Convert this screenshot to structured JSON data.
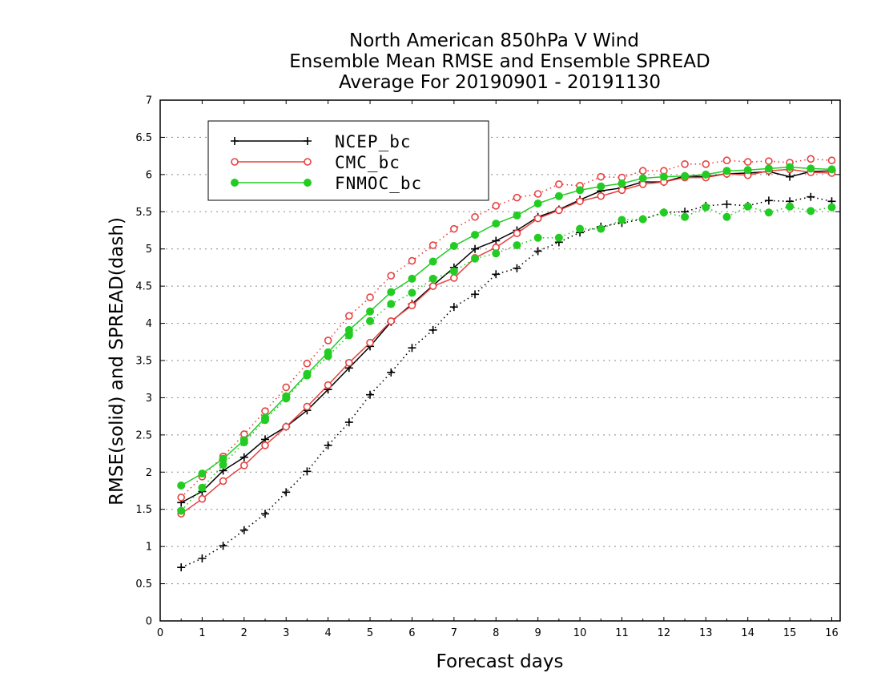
{
  "chart_data": {
    "type": "line",
    "title": [
      "North American 850hPa V Wind",
      "Ensemble Mean RMSE and Ensemble SPREAD",
      "Average For 20190901 - 20191130"
    ],
    "xlabel": "Forecast days",
    "ylabel": "RMSE(solid) and SPREAD(dash)",
    "xlim": [
      0,
      16.2
    ],
    "ylim": [
      0,
      7
    ],
    "xticks": [
      "0",
      "1",
      "2",
      "3",
      "4",
      "5",
      "6",
      "7",
      "8",
      "9",
      "10",
      "11",
      "12",
      "13",
      "14",
      "15",
      "16"
    ],
    "yticks": [
      "0",
      "0.5",
      "1",
      "1.5",
      "2",
      "2.5",
      "3",
      "3.5",
      "4",
      "4.5",
      "5",
      "5.5",
      "6",
      "6.5",
      "7"
    ],
    "grid": "dotted horizontal",
    "legend_position": "top-left",
    "x": [
      0.5,
      1,
      1.5,
      2,
      2.5,
      3,
      3.5,
      4,
      4.5,
      5,
      5.5,
      6,
      6.5,
      7,
      7.5,
      8,
      8.5,
      9,
      9.5,
      10,
      10.5,
      11,
      11.5,
      12,
      12.5,
      13,
      13.5,
      14,
      14.5,
      15,
      15.5,
      16
    ],
    "series": [
      {
        "name": "NCEP_bc",
        "style": "solid",
        "marker": "plus",
        "color": "#000000",
        "values": [
          1.59,
          1.74,
          2.02,
          2.2,
          2.44,
          2.61,
          2.83,
          3.11,
          3.4,
          3.69,
          4.02,
          4.26,
          4.51,
          4.75,
          5.0,
          5.11,
          5.25,
          5.43,
          5.53,
          5.66,
          5.78,
          5.82,
          5.9,
          5.9,
          5.98,
          5.97,
          6.01,
          6.02,
          6.04,
          5.97,
          6.04,
          6.05
        ]
      },
      {
        "name": "NCEP_bc",
        "style": "dash",
        "marker": "plus",
        "color": "#000000",
        "values": [
          0.72,
          0.84,
          1.01,
          1.22,
          1.44,
          1.73,
          2.01,
          2.36,
          2.67,
          3.04,
          3.34,
          3.67,
          3.91,
          4.22,
          4.39,
          4.66,
          4.74,
          4.97,
          5.09,
          5.22,
          5.3,
          5.35,
          5.4,
          5.49,
          5.5,
          5.58,
          5.6,
          5.58,
          5.65,
          5.64,
          5.7,
          5.64
        ]
      },
      {
        "name": "CMC_bc",
        "style": "solid",
        "marker": "open-circle",
        "color": "#e74040",
        "values": [
          1.44,
          1.64,
          1.88,
          2.09,
          2.36,
          2.61,
          2.88,
          3.17,
          3.47,
          3.74,
          4.03,
          4.24,
          4.5,
          4.61,
          4.88,
          5.02,
          5.21,
          5.41,
          5.52,
          5.64,
          5.71,
          5.79,
          5.87,
          5.9,
          5.96,
          5.96,
          6.01,
          5.99,
          6.05,
          6.07,
          6.03,
          6.02
        ]
      },
      {
        "name": "CMC_bc",
        "style": "dash",
        "marker": "open-circle",
        "color": "#e74040",
        "values": [
          1.66,
          1.94,
          2.21,
          2.51,
          2.82,
          3.14,
          3.46,
          3.77,
          4.1,
          4.35,
          4.64,
          4.84,
          5.05,
          5.27,
          5.43,
          5.58,
          5.69,
          5.74,
          5.87,
          5.85,
          5.97,
          5.96,
          6.05,
          6.05,
          6.14,
          6.14,
          6.19,
          6.17,
          6.18,
          6.16,
          6.21,
          6.19
        ]
      },
      {
        "name": "FNMOC_bc",
        "style": "solid",
        "marker": "filled-circle",
        "color": "#22cc22",
        "values": [
          1.82,
          1.98,
          2.18,
          2.43,
          2.73,
          3.02,
          3.32,
          3.61,
          3.91,
          4.16,
          4.42,
          4.6,
          4.83,
          5.04,
          5.19,
          5.34,
          5.45,
          5.61,
          5.71,
          5.79,
          5.84,
          5.88,
          5.95,
          5.97,
          5.98,
          6.0,
          6.05,
          6.06,
          6.08,
          6.1,
          6.08,
          6.07
        ]
      },
      {
        "name": "FNMOC_bc",
        "style": "dash",
        "marker": "filled-circle",
        "color": "#22cc22",
        "values": [
          1.48,
          1.79,
          2.1,
          2.4,
          2.7,
          2.99,
          3.3,
          3.56,
          3.84,
          4.03,
          4.26,
          4.41,
          4.6,
          4.7,
          4.87,
          4.94,
          5.05,
          5.15,
          5.15,
          5.27,
          5.27,
          5.39,
          5.4,
          5.49,
          5.43,
          5.56,
          5.43,
          5.57,
          5.49,
          5.57,
          5.51,
          5.56
        ]
      }
    ],
    "legend": [
      {
        "label": "NCEP_bc",
        "color": "#000000",
        "marker": "plus"
      },
      {
        "label": "CMC_bc",
        "color": "#e74040",
        "marker": "open-circle"
      },
      {
        "label": "FNMOC_bc",
        "color": "#22cc22",
        "marker": "filled-circle"
      }
    ]
  }
}
